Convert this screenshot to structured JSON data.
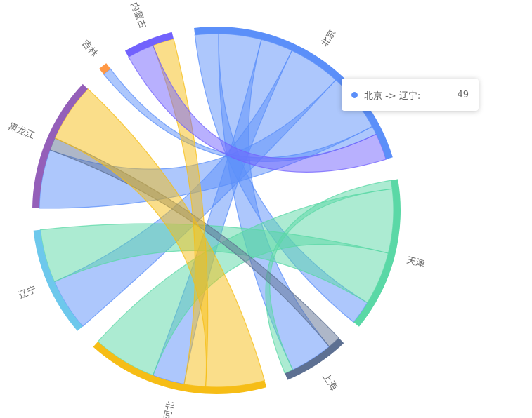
{
  "chart_data": {
    "type": "chord",
    "nodes": [
      {
        "name": "北京",
        "color": "#5b8ff9"
      },
      {
        "name": "天津",
        "color": "#5ad8a6"
      },
      {
        "name": "上海",
        "color": "#5d7092"
      },
      {
        "name": "河北",
        "color": "#f6bd16"
      },
      {
        "name": "辽宁",
        "color": "#6dc8ec"
      },
      {
        "name": "黑龙江",
        "color": "#945fb9"
      },
      {
        "name": "吉林",
        "color": "#ff9845"
      },
      {
        "name": "内蒙古",
        "color": "#7262fd"
      }
    ],
    "links": [
      {
        "source": "北京",
        "target": "天津",
        "value": 22
      },
      {
        "source": "北京",
        "target": "上海",
        "value": 40
      },
      {
        "source": "北京",
        "target": "河北",
        "value": 30
      },
      {
        "source": "北京",
        "target": "辽宁",
        "value": 49
      },
      {
        "source": "北京",
        "target": "黑龙江",
        "value": 55
      },
      {
        "source": "北京",
        "target": "吉林",
        "value": 8
      },
      {
        "source": "天津",
        "target": "河北",
        "value": 60
      },
      {
        "source": "天津",
        "target": "辽宁",
        "value": 50
      },
      {
        "source": "天津",
        "target": "上海",
        "value": 8
      },
      {
        "source": "上海",
        "target": "黑龙江",
        "value": 12
      },
      {
        "source": "河北",
        "target": "黑龙江",
        "value": 55
      },
      {
        "source": "河北",
        "target": "内蒙古",
        "value": 20
      },
      {
        "source": "内蒙古",
        "target": "北京",
        "value": 25
      }
    ]
  },
  "tooltip": {
    "label": "北京 -> 辽宁:",
    "value": "49",
    "color": "#5b8ff9"
  }
}
